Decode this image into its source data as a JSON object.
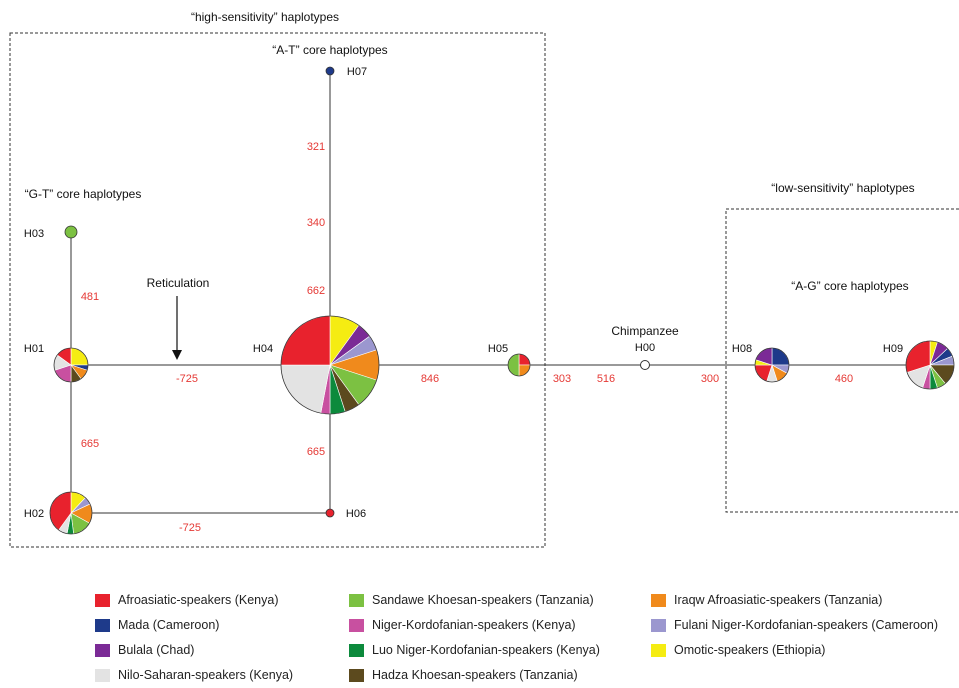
{
  "titles": {
    "high": "“high-sensitivity” haplotypes",
    "low": "“low-sensitivity” haplotypes",
    "at": "“A-T” core haplotypes",
    "gt": "“G-T” core haplotypes",
    "ag": "“A-G” core haplotypes"
  },
  "annotations": {
    "reticulation": "Reticulation",
    "chimpanzee": "Chimpanzee"
  },
  "nodes": [
    {
      "id": "H00",
      "label": "H00",
      "slices": []
    },
    {
      "id": "H01",
      "label": "H01",
      "slices": [
        {
          "group": "omotic",
          "value": 25
        },
        {
          "group": "mada",
          "value": 5
        },
        {
          "group": "iraqw",
          "value": 10
        },
        {
          "group": "hadza",
          "value": 10
        },
        {
          "group": "niger_kordofanian",
          "value": 20
        },
        {
          "group": "nilo_saharan",
          "value": 15
        },
        {
          "group": "afroasiatic",
          "value": 15
        }
      ]
    },
    {
      "id": "H02",
      "label": "H02",
      "slices": [
        {
          "group": "omotic",
          "value": 12
        },
        {
          "group": "fulani",
          "value": 6
        },
        {
          "group": "iraqw",
          "value": 15
        },
        {
          "group": "sandawe",
          "value": 15
        },
        {
          "group": "luo",
          "value": 5
        },
        {
          "group": "nilo_saharan",
          "value": 7
        },
        {
          "group": "afroasiatic",
          "value": 40
        }
      ]
    },
    {
      "id": "H03",
      "label": "H03",
      "slices": [
        {
          "group": "sandawe",
          "value": 100
        }
      ]
    },
    {
      "id": "H04",
      "label": "H04",
      "slices": [
        {
          "group": "omotic",
          "value": 10
        },
        {
          "group": "bulala",
          "value": 5
        },
        {
          "group": "fulani",
          "value": 5
        },
        {
          "group": "iraqw",
          "value": 10
        },
        {
          "group": "sandawe",
          "value": 10
        },
        {
          "group": "hadza",
          "value": 5
        },
        {
          "group": "luo",
          "value": 5
        },
        {
          "group": "niger_kordofanian",
          "value": 3
        },
        {
          "group": "nilo_saharan",
          "value": 22
        },
        {
          "group": "afroasiatic",
          "value": 25
        }
      ]
    },
    {
      "id": "H05",
      "label": "H05",
      "slices": [
        {
          "group": "afroasiatic",
          "value": 25
        },
        {
          "group": "iraqw",
          "value": 25
        },
        {
          "group": "sandawe",
          "value": 50
        }
      ]
    },
    {
      "id": "H06",
      "label": "H06",
      "slices": [
        {
          "group": "afroasiatic",
          "value": 100
        }
      ]
    },
    {
      "id": "H07",
      "label": "H07",
      "slices": [
        {
          "group": "mada",
          "value": 100
        }
      ]
    },
    {
      "id": "H08",
      "label": "H08",
      "slices": [
        {
          "group": "mada",
          "value": 25
        },
        {
          "group": "fulani",
          "value": 8
        },
        {
          "group": "iraqw",
          "value": 12
        },
        {
          "group": "nilo_saharan",
          "value": 10
        },
        {
          "group": "afroasiatic",
          "value": 20
        },
        {
          "group": "omotic",
          "value": 5
        },
        {
          "group": "bulala",
          "value": 20
        }
      ]
    },
    {
      "id": "H09",
      "label": "H09",
      "slices": [
        {
          "group": "omotic",
          "value": 5
        },
        {
          "group": "bulala",
          "value": 8
        },
        {
          "group": "mada",
          "value": 6
        },
        {
          "group": "fulani",
          "value": 6
        },
        {
          "group": "hadza",
          "value": 14
        },
        {
          "group": "sandawe",
          "value": 6
        },
        {
          "group": "luo",
          "value": 5
        },
        {
          "group": "niger_kordofanian",
          "value": 5
        },
        {
          "group": "nilo_saharan",
          "value": 15
        },
        {
          "group": "afroasiatic",
          "value": 30
        }
      ]
    }
  ],
  "edges": [
    {
      "from": "H01",
      "to": "H03",
      "label": "481"
    },
    {
      "from": "H01",
      "to": "H02",
      "label": "665"
    },
    {
      "from": "H01",
      "to": "H04",
      "label": "-725"
    },
    {
      "from": "H02",
      "to": "H06",
      "label": "-725"
    },
    {
      "from": "H04",
      "to": "H07",
      "label": "321"
    },
    {
      "from": "H04",
      "to": "H07",
      "label": "340"
    },
    {
      "from": "H04",
      "to": "H07",
      "label": "662"
    },
    {
      "from": "H04",
      "to": "H06",
      "label": "665"
    },
    {
      "from": "H04",
      "to": "H05",
      "label": "846"
    },
    {
      "from": "H05",
      "to": "H00",
      "label": "303"
    },
    {
      "from": "H05",
      "to": "H00",
      "label": "516"
    },
    {
      "from": "H00",
      "to": "H08",
      "label": "300"
    },
    {
      "from": "H08",
      "to": "H09",
      "label": "460"
    }
  ],
  "legend": [
    {
      "key": "afroasiatic",
      "label": "Afroasiatic-speakers (Kenya)",
      "color": "#e8222d"
    },
    {
      "key": "mada",
      "label": "Mada (Cameroon)",
      "color": "#1e3a8a"
    },
    {
      "key": "bulala",
      "label": "Bulala (Chad)",
      "color": "#7b2a96"
    },
    {
      "key": "nilo_saharan",
      "label": "Nilo-Saharan-speakers (Kenya)",
      "color": "#e3e3e3"
    },
    {
      "key": "sandawe",
      "label": "Sandawe Khoesan-speakers (Tanzania)",
      "color": "#7cc142"
    },
    {
      "key": "niger_kordofanian",
      "label": "Niger-Kordofanian-speakers (Kenya)",
      "color": "#c850a0"
    },
    {
      "key": "luo",
      "label": "Luo Niger-Kordofanian-speakers (Kenya)",
      "color": "#0c8a3c"
    },
    {
      "key": "hadza",
      "label": "Hadza Khoesan-speakers (Tanzania)",
      "color": "#5c4a1e"
    },
    {
      "key": "iraqw",
      "label": "Iraqw Afroasiatic-speakers (Tanzania)",
      "color": "#f08a1c"
    },
    {
      "key": "fulani",
      "label": "Fulani Niger-Kordofanian-speakers (Cameroon)",
      "color": "#9b97cf"
    },
    {
      "key": "omotic",
      "label": "Omotic-speakers (Ethiopia)",
      "color": "#f5ec12"
    }
  ]
}
